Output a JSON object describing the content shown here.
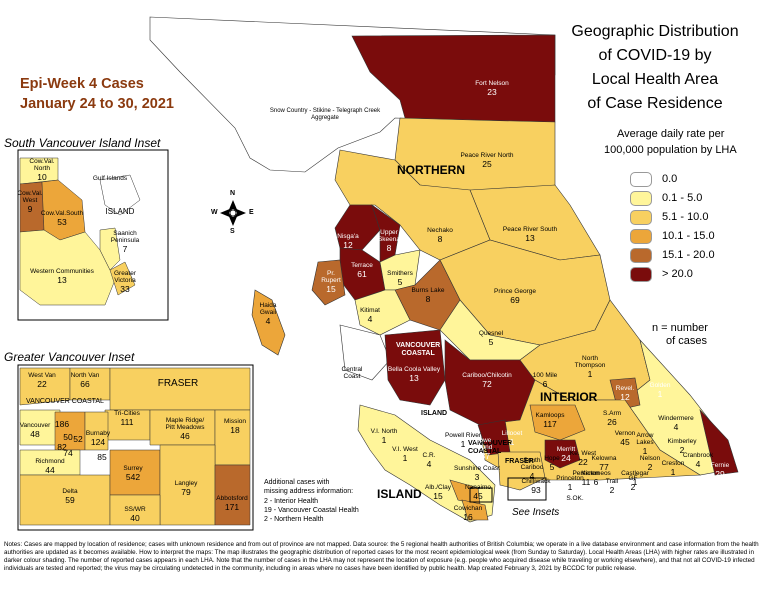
{
  "title": {
    "lines": [
      "Geographic Distribution",
      "of COVID-19 by",
      "Local Health Area",
      "of Case Residence"
    ]
  },
  "epi_week": {
    "line1": "Epi-Week 4 Cases",
    "line2": "January 24 to 30, 2021"
  },
  "legend": {
    "title_line1": "Average daily rate per",
    "title_line2": "100,000 population by LHA",
    "items": [
      {
        "label": "0.0",
        "color": "#ffffff"
      },
      {
        "label": "0.1 - 5.0",
        "color": "#fff59a"
      },
      {
        "label": "5.1 - 10.0",
        "color": "#f8d060"
      },
      {
        "label": "10.1 - 15.0",
        "color": "#eca63a"
      },
      {
        "label": "15.1 - 20.0",
        "color": "#b9692c"
      },
      {
        "label": "> 20.0",
        "color": "#7a0c0c"
      }
    ],
    "n_note_line1": "n = number",
    "n_note_line2": "of cases"
  },
  "regions": {
    "northern": "NORTHERN",
    "interior": "INTERIOR",
    "vancouver_coastal": "VANCOUVER\nCOASTAL",
    "fraser": "FRASER",
    "island": "ISLAND",
    "island_small": "ISLAND",
    "vc_small": "VANCOUVER\nCOASTAL",
    "fraser_small": "FRASER"
  },
  "insets": {
    "south_island_title": "South Vancouver Island Inset",
    "greater_vancouver_title": "Greater Vancouver Inset",
    "see_insets": "See Insets",
    "south_island": [
      {
        "name": "Cow.Val.\nNorth",
        "n": "10"
      },
      {
        "name": "Cow.Val.\nWest",
        "n": "9"
      },
      {
        "name": "Cow.Val.South",
        "n": "53"
      },
      {
        "name": "Gulf Islands",
        "n": ""
      },
      {
        "name": "ISLAND",
        "n": ""
      },
      {
        "name": "Saanich\nPeninsula",
        "n": "7"
      },
      {
        "name": "Western Communities",
        "n": "13"
      },
      {
        "name": "Greater\nVictoria",
        "n": "33"
      }
    ],
    "greater_vancouver": [
      {
        "name": "West Van",
        "n": "22"
      },
      {
        "name": "North Van",
        "n": "66"
      },
      {
        "name": "VANCOUVER COASTAL",
        "n": ""
      },
      {
        "name": "FRASER",
        "n": ""
      },
      {
        "name": "Tri-Cities",
        "n": "111"
      },
      {
        "name": "Maple Ridge/\nPitt Meadows",
        "n": "46"
      },
      {
        "name": "Mission",
        "n": "18"
      },
      {
        "name": "Vancouver",
        "n": "48"
      },
      {
        "name": "",
        "n": "186"
      },
      {
        "name": "",
        "n": "50"
      },
      {
        "name": "",
        "n": "82"
      },
      {
        "name": "",
        "n": "52"
      },
      {
        "name": "",
        "n": "74"
      },
      {
        "name": "Burnaby",
        "n": "124"
      },
      {
        "name": "",
        "n": "85"
      },
      {
        "name": "Richmond",
        "n": "44"
      },
      {
        "name": "Delta",
        "n": "59"
      },
      {
        "name": "Surrey",
        "n": "542"
      },
      {
        "name": "Langley",
        "n": "79"
      },
      {
        "name": "SS/WR",
        "n": "40"
      },
      {
        "name": "Abbotsford",
        "n": "171"
      }
    ]
  },
  "lha_labels": [
    {
      "name": "Fort Nelson",
      "n": "23"
    },
    {
      "name": "Snow Country - Stikine - Telegraph Creek\nAggregate",
      "n": ""
    },
    {
      "name": "Peace River North",
      "n": "25"
    },
    {
      "name": "Peace River South",
      "n": "13"
    },
    {
      "name": "Nechako",
      "n": "8"
    },
    {
      "name": "Nisga'a",
      "n": "12"
    },
    {
      "name": "Upper\nSkeena",
      "n": "8"
    },
    {
      "name": "Terrace",
      "n": "61"
    },
    {
      "name": "Pr.\nRupert",
      "n": "15"
    },
    {
      "name": "Smithers",
      "n": "5"
    },
    {
      "name": "Burns Lake",
      "n": "8"
    },
    {
      "name": "Haida\nGwaii",
      "n": "4"
    },
    {
      "name": "Kitimat",
      "n": "4"
    },
    {
      "name": "Prince George",
      "n": "69"
    },
    {
      "name": "Quesnel",
      "n": "5"
    },
    {
      "name": "Central\nCoast",
      "n": ""
    },
    {
      "name": "Bella Coola Valley",
      "n": "13"
    },
    {
      "name": "Cariboo/Chilcotin",
      "n": "72"
    },
    {
      "name": "100 Mile",
      "n": "6"
    },
    {
      "name": "North\nThompson",
      "n": "1"
    },
    {
      "name": "Golden",
      "n": "1"
    },
    {
      "name": "Revel.",
      "n": "12"
    },
    {
      "name": "Windermere",
      "n": "4"
    },
    {
      "name": "Kamloops",
      "n": "117"
    },
    {
      "name": "Lillooet",
      "n": "1"
    },
    {
      "name": "Howe\nSound",
      "n": "287"
    },
    {
      "name": "South\nCariboo",
      "n": "4"
    },
    {
      "name": "Merritt",
      "n": "24"
    },
    {
      "name": "S.Arm",
      "n": "26"
    },
    {
      "name": "Vernon",
      "n": "45"
    },
    {
      "name": "Arrow\nLakes",
      "n": "1"
    },
    {
      "name": "Kimberley",
      "n": "2"
    },
    {
      "name": "Fernie",
      "n": "29"
    },
    {
      "name": "Cranbrook",
      "n": "4"
    },
    {
      "name": "Creston",
      "n": "1"
    },
    {
      "name": "Nelson",
      "n": "2"
    },
    {
      "name": "Castlegar",
      "n": "1"
    },
    {
      "name": "Trail",
      "n": "2"
    },
    {
      "name": "GF",
      "n": "2"
    },
    {
      "name": "S.OK.",
      "n": ""
    },
    {
      "name": "Princeton",
      "n": "1"
    },
    {
      "name": "Hope",
      "n": "5"
    },
    {
      "name": "Chilliwack",
      "n": "93"
    },
    {
      "name": "Keremeos",
      "n": "6"
    },
    {
      "name": "Penticton",
      "n": "11"
    },
    {
      "name": "Ke. West",
      "n": "22"
    },
    {
      "name": "Kelowna",
      "n": "77"
    },
    {
      "name": "V.I. North",
      "n": "1"
    },
    {
      "name": "V.I. West",
      "n": "1"
    },
    {
      "name": "C.R.",
      "n": "4"
    },
    {
      "name": "Powell River",
      "n": "1"
    },
    {
      "name": "Sunshine Coast",
      "n": "3"
    },
    {
      "name": "Alb./Clay",
      "n": "15"
    },
    {
      "name": "Nanaimo",
      "n": "45"
    },
    {
      "name": "Cowichan",
      "n": "16"
    }
  ],
  "additional_cases": {
    "title_line1": "Additional cases with",
    "title_line2": "missing address information:",
    "items": [
      "2 - Interior Health",
      "19 - Vancouver Coastal Health",
      "2 - Northern Health"
    ]
  },
  "compass": {
    "n": "N",
    "s": "S",
    "e": "E",
    "w": "W"
  },
  "notes": "Notes: Cases are mapped by location of residence; cases with unknown residence and from out of province are not mapped. Data source: the 5 regional health authorities of British Columbia; we operate in a live database environment and case information from the health authorities are updated as it becomes available. How to interpret the maps: The map illustrates the geographic distribution of reported cases for the most recent epidemiological week (from Sunday to Saturday). Local Health Areas (LHA) with higher rates are illustrated in darker colour shading. The number of reported cases appears in each LHA. Note that the number of cases in the LHA may not represent the location of exposure (e.g. people who acquired disease while traveling or working elsewhere), and that not all COVID-19 infected individuals are tested and reported; the virus may be circulating undetected in the community, including in areas where no cases have been identified by public health. Map created February 3, 2021 by BCCDC for public release."
}
